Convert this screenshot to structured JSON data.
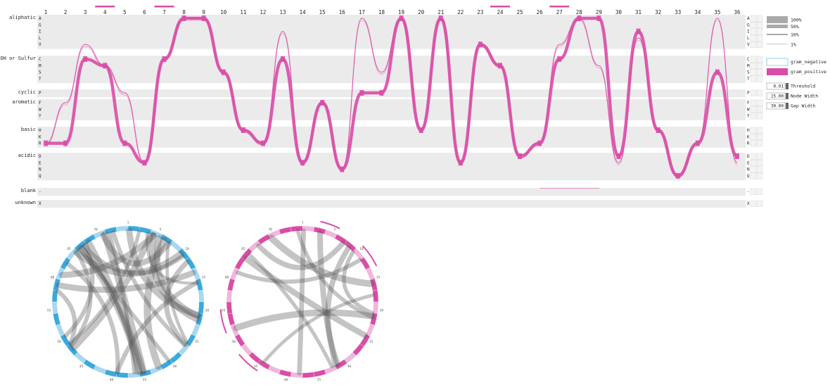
{
  "positions": [
    "1",
    "2",
    "3",
    "4",
    "5",
    "6",
    "7",
    "8",
    "9",
    "10",
    "11",
    "12",
    "13",
    "14",
    "15",
    "16",
    "17",
    "18",
    "19",
    "20",
    "21",
    "22",
    "23",
    "24",
    "25",
    "26",
    "27",
    "28",
    "29",
    "30",
    "31",
    "32",
    "33",
    "34",
    "35",
    "36"
  ],
  "highlighted_positions": [
    "4",
    "7",
    "24",
    "27"
  ],
  "groups": [
    {
      "name": "aliphatic",
      "residues": [
        "A",
        "G",
        "I",
        "L",
        "V"
      ]
    },
    {
      "name": "OH or Sulfur",
      "residues": [
        "C",
        "M",
        "S",
        "T"
      ]
    },
    {
      "name": "cyclic",
      "residues": [
        "P"
      ]
    },
    {
      "name": "aromatic",
      "residues": [
        "F",
        "W",
        "Y"
      ]
    },
    {
      "name": "basic",
      "residues": [
        "H",
        "K",
        "R"
      ]
    },
    {
      "name": "acidic",
      "residues": [
        "D",
        "E",
        "N",
        "Q"
      ]
    },
    {
      "name": "blank",
      "residues": [
        "-"
      ]
    },
    {
      "name": "unknown",
      "residues": [
        "X"
      ]
    }
  ],
  "main_path": [
    "R",
    "R",
    "C",
    "M",
    "R",
    "E",
    "C",
    "A",
    "A",
    "S",
    "H",
    "R",
    "C",
    "E",
    "F",
    "N",
    "P",
    "P",
    "A",
    "H",
    "A",
    "E",
    "V",
    "M",
    "D",
    "R",
    "C",
    "A",
    "A",
    "D",
    "I",
    "H",
    "Q",
    "R",
    "S",
    "D"
  ],
  "alt_path": [
    "R",
    "F",
    "V",
    "M",
    "P",
    "E",
    "C",
    "A",
    "A",
    "S",
    "H",
    "R",
    "I",
    "E",
    "F",
    "N",
    "A",
    "S",
    "A",
    "H",
    "A",
    "E",
    "V",
    "M",
    "D",
    "R",
    "V",
    "A",
    "M",
    "E",
    "L",
    "H",
    "Q",
    "R",
    "A",
    "E"
  ],
  "colors": {
    "gram_negative": "#8fd0ec",
    "gram_positive": "#d94da6",
    "track_bg": "#ebebeb",
    "chord": "#555555",
    "ring_blue": "#3aa9dc",
    "ring_blue_light": "#a8d8f0",
    "ring_pink": "#d94da6",
    "ring_pink_light": "#f0b8dc"
  },
  "size_legend": {
    "labels": [
      "100%",
      "50%",
      "10%",
      "1%"
    ]
  },
  "color_legend": {
    "gram_negative": "gram_negative",
    "gram_positive": "gram_positive"
  },
  "controls": {
    "threshold": {
      "label": "Threshold",
      "value": "0.01"
    },
    "node_width": {
      "label": "Node Width",
      "value": "15.00"
    },
    "gap_width": {
      "label": "Gap Width",
      "value": "30.00"
    }
  },
  "chord_diagrams": [
    {
      "name": "gram-negative-contacts",
      "chord_count": 26,
      "ticks": [
        "1",
        "5",
        "10",
        "15",
        "20",
        "25",
        "30",
        "35",
        "40",
        "45",
        "50",
        "55",
        "60",
        "65",
        "70"
      ]
    },
    {
      "name": "gram-positive-contacts",
      "chord_count": 12,
      "ticks": [
        "1",
        "5",
        "10",
        "15",
        "20",
        "25",
        "30",
        "35",
        "40",
        "45",
        "50",
        "55",
        "60",
        "65",
        "70"
      ]
    }
  ]
}
